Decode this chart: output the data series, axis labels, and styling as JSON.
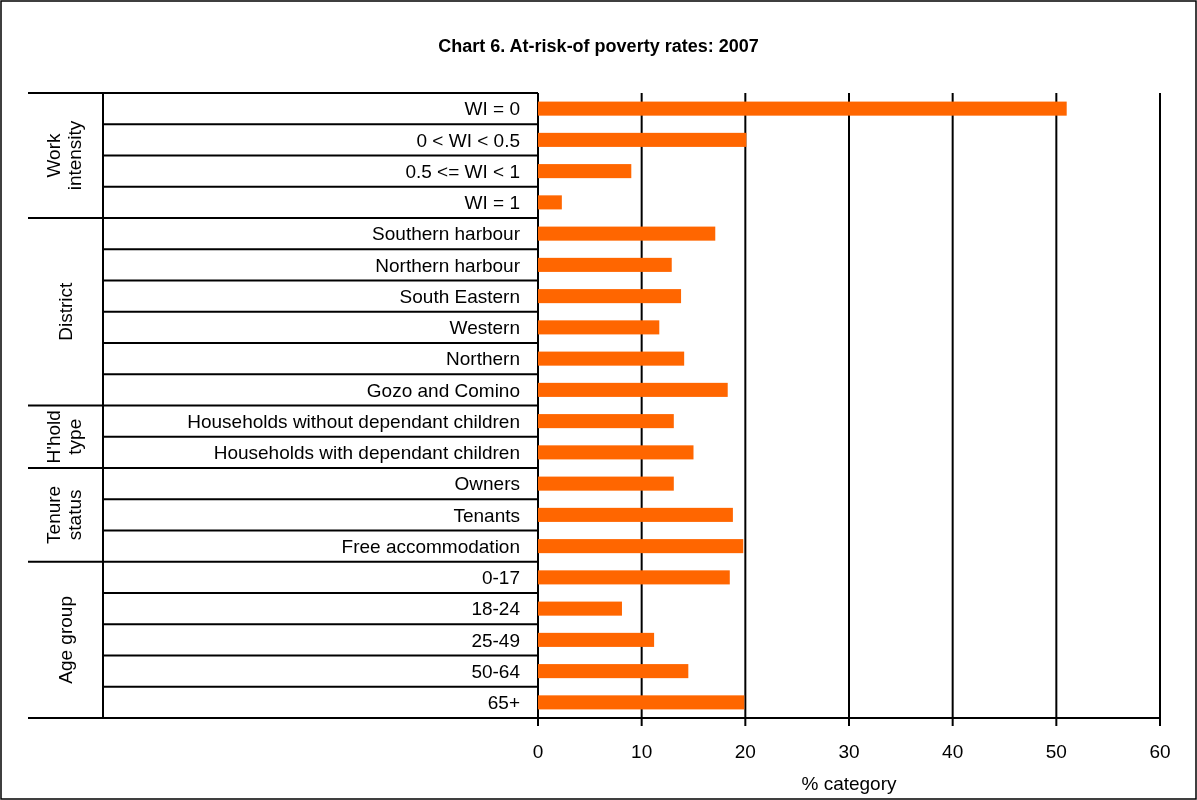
{
  "chart_data": {
    "type": "bar",
    "orientation": "horizontal",
    "title": "Chart 6.  At-risk-of poverty rates: 2007",
    "xlabel": "% category",
    "categories": [
      "WI = 0",
      "0 < WI < 0.5",
      "0.5 <= WI < 1",
      "WI = 1",
      "Southern harbour",
      "Northern harbour",
      "South Eastern",
      "Western",
      "Northern",
      "Gozo and Comino",
      "Households without dependant children",
      "Households with dependant children",
      "Owners",
      "Tenants",
      "Free accommodation",
      "0-17",
      "18-24",
      "25-49",
      "50-64",
      "65+"
    ],
    "values": [
      51.0,
      20.1,
      9.0,
      2.3,
      17.1,
      12.9,
      13.8,
      11.7,
      14.1,
      18.3,
      13.1,
      15.0,
      13.1,
      18.8,
      19.8,
      18.5,
      8.1,
      11.2,
      14.5,
      19.9
    ],
    "color": "#ff6600",
    "xlim": [
      0,
      60
    ],
    "xticks": [
      0,
      10,
      20,
      30,
      40,
      50,
      60
    ],
    "grid": "x",
    "annotations": [
      "Work intensity",
      "District",
      "H'hold type",
      "Tenure status",
      "Age group"
    ]
  }
}
